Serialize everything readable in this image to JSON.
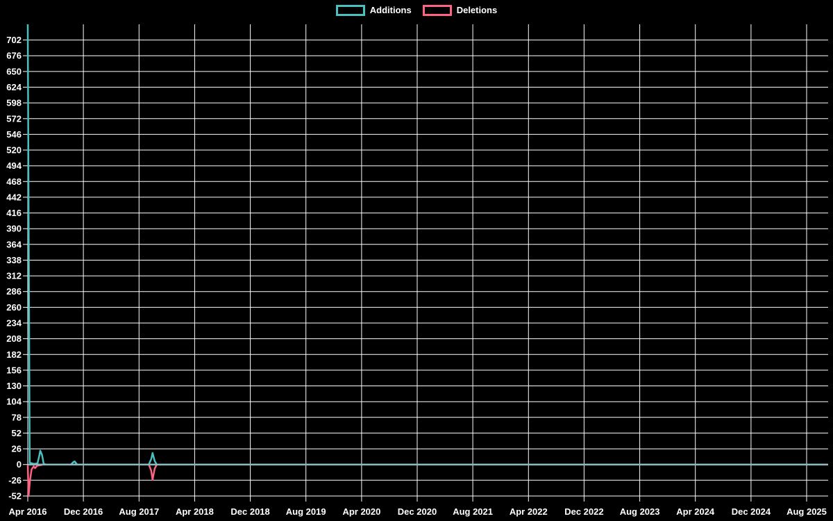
{
  "chart_data": {
    "type": "line",
    "title": "",
    "legend_position": "top",
    "grid": "on",
    "background_color": "#000000",
    "grid_color": "#ffffff",
    "text_color": "#ffffff",
    "zero_line_color": "#8fb8c4",
    "x_axis": {
      "start": "Apr 2016",
      "months_between_ticks": 8,
      "tick_labels": [
        "Apr 2016",
        "Dec 2016",
        "Aug 2017",
        "Apr 2018",
        "Dec 2018",
        "Aug 2019",
        "Apr 2020",
        "Dec 2020",
        "Aug 2021",
        "Apr 2022",
        "Dec 2022",
        "Aug 2023",
        "Apr 2024",
        "Dec 2024",
        "Aug 2025"
      ]
    },
    "y_axis": {
      "min": -52,
      "render_max": 728,
      "step": 26
    },
    "y_tick_labels": [
      702,
      676,
      650,
      624,
      598,
      572,
      546,
      520,
      494,
      468,
      442,
      416,
      390,
      364,
      338,
      312,
      286,
      260,
      234,
      208,
      182,
      156,
      130,
      104,
      78,
      52,
      26,
      0,
      -26,
      -52
    ],
    "path_units": "months_since_Apr_2016",
    "series": [
      {
        "name": "Additions",
        "color": "#4bc0c0",
        "baseline": 0,
        "path": [
          [
            0,
            728
          ],
          [
            0.28,
            3
          ],
          [
            0.9,
            1
          ],
          [
            1.4,
            2
          ],
          [
            1.65,
            14
          ],
          [
            1.8,
            23
          ],
          [
            2.05,
            16
          ],
          [
            2.3,
            1
          ],
          [
            2.6,
            0
          ],
          [
            6.2,
            0
          ],
          [
            6.55,
            4
          ],
          [
            6.75,
            5
          ],
          [
            7.1,
            0
          ],
          [
            17.4,
            0
          ],
          [
            17.75,
            9
          ],
          [
            17.95,
            19
          ],
          [
            18.25,
            6
          ],
          [
            18.55,
            0
          ],
          [
            115,
            0
          ]
        ],
        "notable_points": [
          {
            "date": "Apr 2016",
            "value": 728
          },
          {
            "date": "Jun 2016",
            "value": 23
          },
          {
            "date": "Nov 2016",
            "value": 5
          },
          {
            "date": "Oct 2017",
            "value": 19
          }
        ]
      },
      {
        "name": "Deletions",
        "color": "#ff6384",
        "baseline": 0,
        "path": [
          [
            0,
            -1
          ],
          [
            0.12,
            -52
          ],
          [
            0.3,
            -28
          ],
          [
            0.55,
            -8
          ],
          [
            0.85,
            -3
          ],
          [
            1.05,
            -6
          ],
          [
            1.35,
            -2
          ],
          [
            1.8,
            -1
          ],
          [
            2.2,
            0
          ],
          [
            17.4,
            0
          ],
          [
            17.75,
            -10
          ],
          [
            17.95,
            -25
          ],
          [
            18.25,
            -7
          ],
          [
            18.55,
            0
          ],
          [
            115,
            0
          ]
        ],
        "notable_points": [
          {
            "date": "Apr 2016",
            "value": -52
          },
          {
            "date": "May 2016",
            "value": -6
          },
          {
            "date": "Oct 2017",
            "value": -25
          }
        ]
      }
    ]
  }
}
